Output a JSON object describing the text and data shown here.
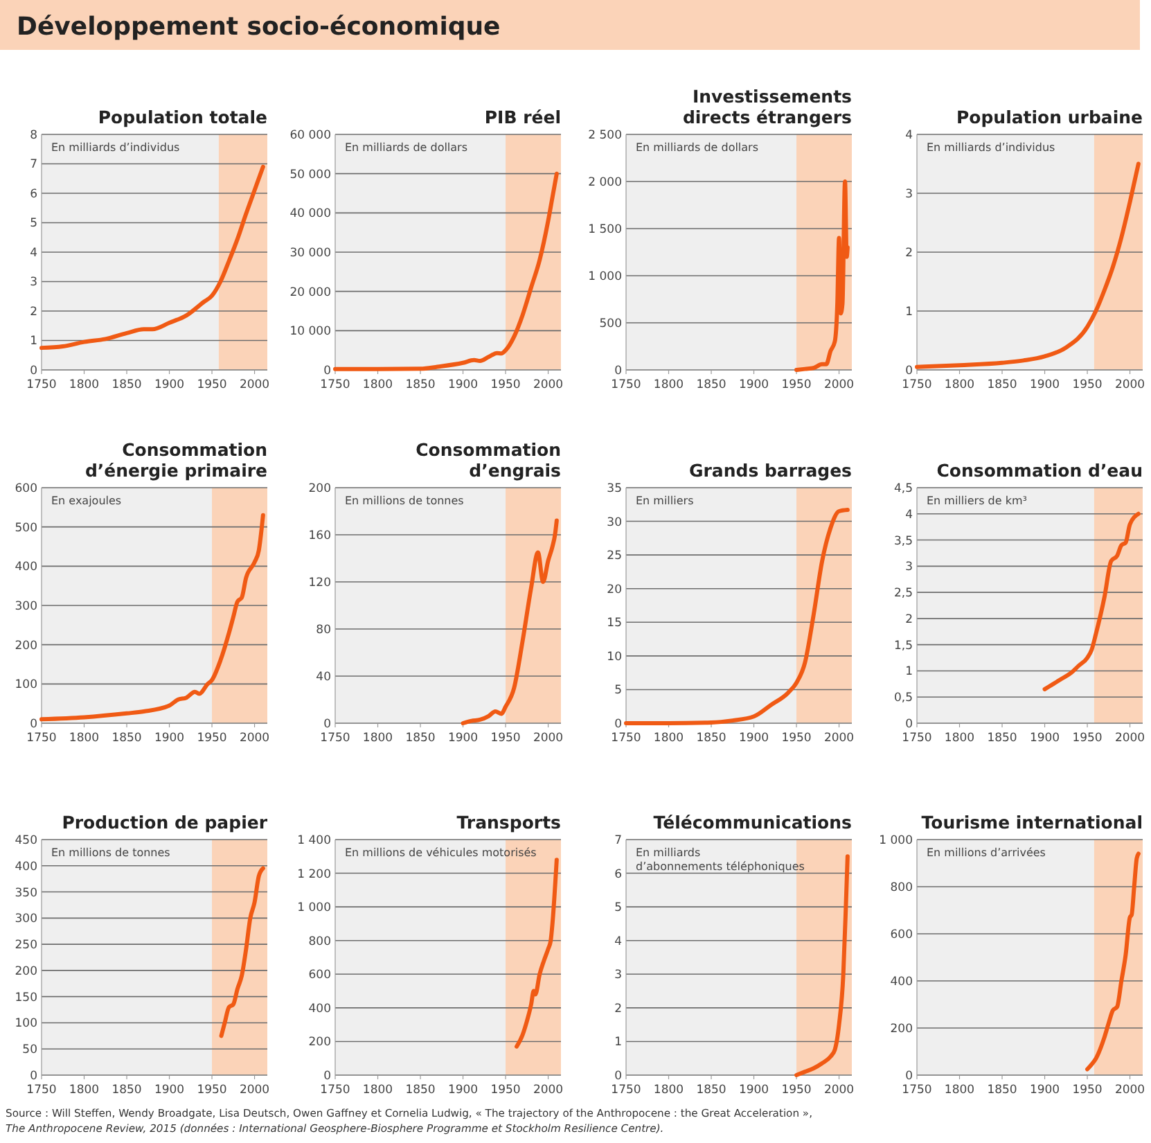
{
  "chart_data": [
    {
      "type": "other",
      "title": "Développement socio-économique",
      "annotations": [
        "Source : Will Steffen, Wendy Broadgate, Lisa Deutsch, Owen Gaffney et Cornelia Ludwig, « The trajectory of the Anthropocene : the Great Acceleration »,",
        "The Anthropocene Review, 2015 (données : International Geosphere-Biosphere Programme et Stockholm Resilience Centre)."
      ]
    },
    {
      "type": "line",
      "title": "Population  totale",
      "ylabel": "En milliards d’individus",
      "color": "#f05a14",
      "grid": "y",
      "xlim": [
        1750,
        2015
      ],
      "xticks": [
        1750,
        1800,
        1850,
        1900,
        1950,
        2000
      ],
      "ylim": [
        0,
        8
      ],
      "yticks": [
        0,
        1,
        2,
        3,
        4,
        5,
        6,
        7,
        8
      ],
      "bands": [
        {
          "axis": "x",
          "from": 1958,
          "to": 2015,
          "color": "#fbd3b8"
        }
      ],
      "x": [
        1750,
        1775,
        1800,
        1825,
        1850,
        1870,
        1880,
        1900,
        1920,
        1940,
        1950,
        1960,
        1970,
        1980,
        1990,
        2000,
        2010
      ],
      "values": [
        0.75,
        0.8,
        0.95,
        1.05,
        1.25,
        1.38,
        1.38,
        1.6,
        1.85,
        2.3,
        2.52,
        3.0,
        3.7,
        4.45,
        5.3,
        6.1,
        6.9
      ]
    },
    {
      "type": "line",
      "title": "PIB réel",
      "ylabel": "En milliards de dollars",
      "color": "#f05a14",
      "grid": "y",
      "xlim": [
        1750,
        2015
      ],
      "xticks": [
        1750,
        1800,
        1850,
        1900,
        1950,
        2000
      ],
      "ylim": [
        0,
        60000
      ],
      "yticks": [
        0,
        {
          "value": 10000,
          "label": "10 000"
        },
        {
          "value": 20000,
          "label": "20 000"
        },
        {
          "value": 30000,
          "label": "30 000"
        },
        {
          "value": 40000,
          "label": "40 000"
        },
        {
          "value": 50000,
          "label": "50 000"
        },
        {
          "value": 60000,
          "label": "60 000"
        }
      ],
      "bands": [
        {
          "axis": "x",
          "from": 1950,
          "to": 2015,
          "color": "#fbd3b8"
        }
      ],
      "x": [
        1750,
        1800,
        1850,
        1870,
        1900,
        1913,
        1920,
        1930,
        1940,
        1945,
        1950,
        1960,
        1970,
        1980,
        1990,
        2000,
        2005,
        2010
      ],
      "values": [
        200,
        200,
        300,
        800,
        1800,
        2500,
        2300,
        3300,
        4300,
        4200,
        5000,
        8500,
        14000,
        21000,
        28000,
        38000,
        44000,
        50000
      ]
    },
    {
      "type": "line",
      "title": "Investissements\ndirects étrangers",
      "ylabel": "En milliards de dollars",
      "color": "#f05a14",
      "grid": "y",
      "xlim": [
        1750,
        2015
      ],
      "xticks": [
        1750,
        1800,
        1850,
        1900,
        1950,
        2000
      ],
      "ylim": [
        0,
        2500
      ],
      "yticks": [
        0,
        500,
        {
          "value": 1000,
          "label": "1 000"
        },
        {
          "value": 1500,
          "label": "1 500"
        },
        {
          "value": 2000,
          "label": "2 000"
        },
        {
          "value": 2500,
          "label": "2 500"
        }
      ],
      "bands": [
        {
          "axis": "x",
          "from": 1950,
          "to": 2015,
          "color": "#fbd3b8"
        }
      ],
      "x": [
        1950,
        1960,
        1970,
        1980,
        1985,
        1990,
        1995,
        1998,
        2000,
        2002,
        2004,
        2007,
        2009,
        2010
      ],
      "values": [
        0,
        10,
        20,
        60,
        60,
        200,
        300,
        700,
        1400,
        600,
        700,
        2000,
        1200,
        1300
      ]
    },
    {
      "type": "line",
      "title": "Population urbaine",
      "ylabel": "En milliards d’individus",
      "color": "#f05a14",
      "grid": "y",
      "xlim": [
        1750,
        2015
      ],
      "xticks": [
        1750,
        1800,
        1850,
        1900,
        1950,
        2000
      ],
      "ylim": [
        0,
        4
      ],
      "yticks": [
        0,
        1,
        2,
        3,
        4
      ],
      "bands": [
        {
          "axis": "x",
          "from": 1958,
          "to": 2015,
          "color": "#fbd3b8"
        }
      ],
      "x": [
        1750,
        1800,
        1850,
        1875,
        1900,
        1925,
        1950,
        1960,
        1970,
        1980,
        1990,
        2000,
        2010
      ],
      "values": [
        0.05,
        0.08,
        0.12,
        0.16,
        0.23,
        0.38,
        0.73,
        1.0,
        1.35,
        1.75,
        2.25,
        2.85,
        3.5
      ]
    },
    {
      "type": "line",
      "title": "Consommation\nd’énergie primaire",
      "ylabel": "En exajoules",
      "color": "#f05a14",
      "grid": "y",
      "xlim": [
        1750,
        2015
      ],
      "xticks": [
        1750,
        1800,
        1850,
        1900,
        1950,
        2000
      ],
      "ylim": [
        0,
        600
      ],
      "yticks": [
        0,
        100,
        200,
        300,
        400,
        500,
        600
      ],
      "bands": [
        {
          "axis": "x",
          "from": 1950,
          "to": 2015,
          "color": "#fbd3b8"
        }
      ],
      "x": [
        1750,
        1800,
        1850,
        1870,
        1900,
        1910,
        1920,
        1930,
        1935,
        1945,
        1950,
        1960,
        1970,
        1975,
        1980,
        1985,
        1990,
        2000,
        2005,
        2010
      ],
      "values": [
        10,
        15,
        25,
        30,
        45,
        60,
        65,
        80,
        75,
        100,
        110,
        160,
        230,
        270,
        310,
        320,
        370,
        410,
        440,
        530
      ]
    },
    {
      "type": "line",
      "title": "Consommation\nd’engrais",
      "ylabel": "En millions de tonnes",
      "color": "#f05a14",
      "grid": "y",
      "xlim": [
        1750,
        2015
      ],
      "xticks": [
        1750,
        1800,
        1850,
        1900,
        1950,
        2000
      ],
      "ylim": [
        0,
        200
      ],
      "yticks": [
        0,
        40,
        80,
        120,
        160,
        200
      ],
      "bands": [
        {
          "axis": "x",
          "from": 1950,
          "to": 2015,
          "color": "#fbd3b8"
        }
      ],
      "x": [
        1900,
        1910,
        1920,
        1930,
        1938,
        1945,
        1950,
        1960,
        1970,
        1980,
        1988,
        1994,
        2000,
        2005,
        2008,
        2010
      ],
      "values": [
        0,
        2,
        3,
        6,
        10,
        8,
        14,
        30,
        70,
        115,
        145,
        120,
        138,
        150,
        160,
        172
      ]
    },
    {
      "type": "line",
      "title": "Grands barrages",
      "ylabel": "En milliers",
      "color": "#f05a14",
      "grid": "y",
      "xlim": [
        1750,
        2015
      ],
      "xticks": [
        1750,
        1800,
        1850,
        1900,
        1950,
        2000
      ],
      "ylim": [
        0,
        35
      ],
      "yticks": [
        0,
        5,
        10,
        15,
        20,
        25,
        30,
        35
      ],
      "bands": [
        {
          "axis": "x",
          "from": 1950,
          "to": 2015,
          "color": "#fbd3b8"
        }
      ],
      "x": [
        1750,
        1800,
        1850,
        1875,
        1900,
        1920,
        1940,
        1950,
        1960,
        1970,
        1980,
        1990,
        2000,
        2010
      ],
      "values": [
        0,
        0,
        0.1,
        0.4,
        1,
        2.7,
        4.5,
        6,
        9,
        16,
        24,
        29,
        31.5,
        31.7
      ]
    },
    {
      "type": "line",
      "title": "Consommation d’eau",
      "ylabel": "En milliers de km³",
      "color": "#f05a14",
      "grid": "y",
      "xlim": [
        1750,
        2015
      ],
      "xticks": [
        1750,
        1800,
        1850,
        1900,
        1950,
        2000
      ],
      "ylim": [
        0,
        4.5
      ],
      "yticks": [
        0,
        {
          "value": 0.5,
          "label": "0,5"
        },
        1,
        {
          "value": 1.5,
          "label": "1,5"
        },
        2,
        {
          "value": 2.5,
          "label": "2,5"
        },
        3,
        {
          "value": 3.5,
          "label": "3,5"
        },
        4,
        {
          "value": 4.5,
          "label": "4,5"
        }
      ],
      "bands": [
        {
          "axis": "x",
          "from": 1958,
          "to": 2015,
          "color": "#fbd3b8"
        }
      ],
      "x": [
        1900,
        1910,
        1920,
        1930,
        1940,
        1950,
        1955,
        1960,
        1970,
        1978,
        1985,
        1990,
        1995,
        2000,
        2010
      ],
      "values": [
        0.65,
        0.75,
        0.85,
        0.95,
        1.1,
        1.25,
        1.4,
        1.7,
        2.4,
        3.1,
        3.2,
        3.4,
        3.45,
        3.8,
        4.0
      ]
    },
    {
      "type": "line",
      "title": "Production  de papier",
      "ylabel": "En millions de tonnes",
      "color": "#f05a14",
      "grid": "y",
      "xlim": [
        1750,
        2015
      ],
      "xticks": [
        1750,
        1800,
        1850,
        1900,
        1950,
        2000
      ],
      "ylim": [
        0,
        450
      ],
      "yticks": [
        0,
        50,
        100,
        150,
        200,
        250,
        300,
        350,
        400,
        450
      ],
      "bands": [
        {
          "axis": "x",
          "from": 1950,
          "to": 2015,
          "color": "#fbd3b8"
        }
      ],
      "x": [
        1961,
        1965,
        1970,
        1975,
        1980,
        1985,
        1990,
        1995,
        2000,
        2005,
        2010
      ],
      "values": [
        75,
        100,
        130,
        135,
        165,
        190,
        240,
        300,
        330,
        380,
        395
      ]
    },
    {
      "type": "line",
      "title": "Transports",
      "ylabel": "En millions de véhicules motorisés",
      "color": "#f05a14",
      "grid": "y",
      "xlim": [
        1750,
        2015
      ],
      "xticks": [
        1750,
        1800,
        1850,
        1900,
        1950,
        2000
      ],
      "ylim": [
        0,
        1400
      ],
      "yticks": [
        0,
        200,
        400,
        600,
        800,
        {
          "value": 1000,
          "label": "1 000"
        },
        {
          "value": 1200,
          "label": "1 200"
        },
        {
          "value": 1400,
          "label": "1 400"
        }
      ],
      "bands": [
        {
          "axis": "x",
          "from": 1950,
          "to": 2015,
          "color": "#fbd3b8"
        }
      ],
      "x": [
        1963,
        1970,
        1975,
        1980,
        1983,
        1985,
        1990,
        1995,
        2000,
        2003,
        2005,
        2010
      ],
      "values": [
        170,
        240,
        320,
        420,
        500,
        480,
        600,
        680,
        750,
        800,
        900,
        1280
      ]
    },
    {
      "type": "line",
      "title": "Télécommunications",
      "ylabel": "En milliards\nd’abonnements téléphoniques",
      "color": "#f05a14",
      "grid": "y",
      "xlim": [
        1750,
        2015
      ],
      "xticks": [
        1750,
        1800,
        1850,
        1900,
        1950,
        2000
      ],
      "ylim": [
        0,
        7
      ],
      "yticks": [
        0,
        1,
        2,
        3,
        4,
        5,
        6,
        7
      ],
      "bands": [
        {
          "axis": "x",
          "from": 1950,
          "to": 2015,
          "color": "#fbd3b8"
        }
      ],
      "x": [
        1950,
        1960,
        1970,
        1980,
        1990,
        1995,
        2000,
        2005,
        2008,
        2010
      ],
      "values": [
        0,
        0.1,
        0.2,
        0.35,
        0.55,
        0.75,
        1.5,
        3.0,
        5.0,
        6.5
      ]
    },
    {
      "type": "line",
      "title": "Tourisme international",
      "ylabel": "En millions d’arrivées",
      "color": "#f05a14",
      "grid": "y",
      "xlim": [
        1750,
        2015
      ],
      "xticks": [
        1750,
        1800,
        1850,
        1900,
        1950,
        2000
      ],
      "ylim": [
        0,
        1000
      ],
      "yticks": [
        0,
        200,
        400,
        600,
        800,
        {
          "value": 1000,
          "label": "1 000"
        }
      ],
      "bands": [
        {
          "axis": "x",
          "from": 1958,
          "to": 2015,
          "color": "#fbd3b8"
        }
      ],
      "x": [
        1950,
        1955,
        1960,
        1970,
        1975,
        1980,
        1985,
        1990,
        1995,
        2000,
        2002,
        2005,
        2008,
        2010
      ],
      "values": [
        25,
        45,
        70,
        160,
        220,
        275,
        290,
        400,
        510,
        670,
        680,
        800,
        920,
        940
      ]
    }
  ]
}
